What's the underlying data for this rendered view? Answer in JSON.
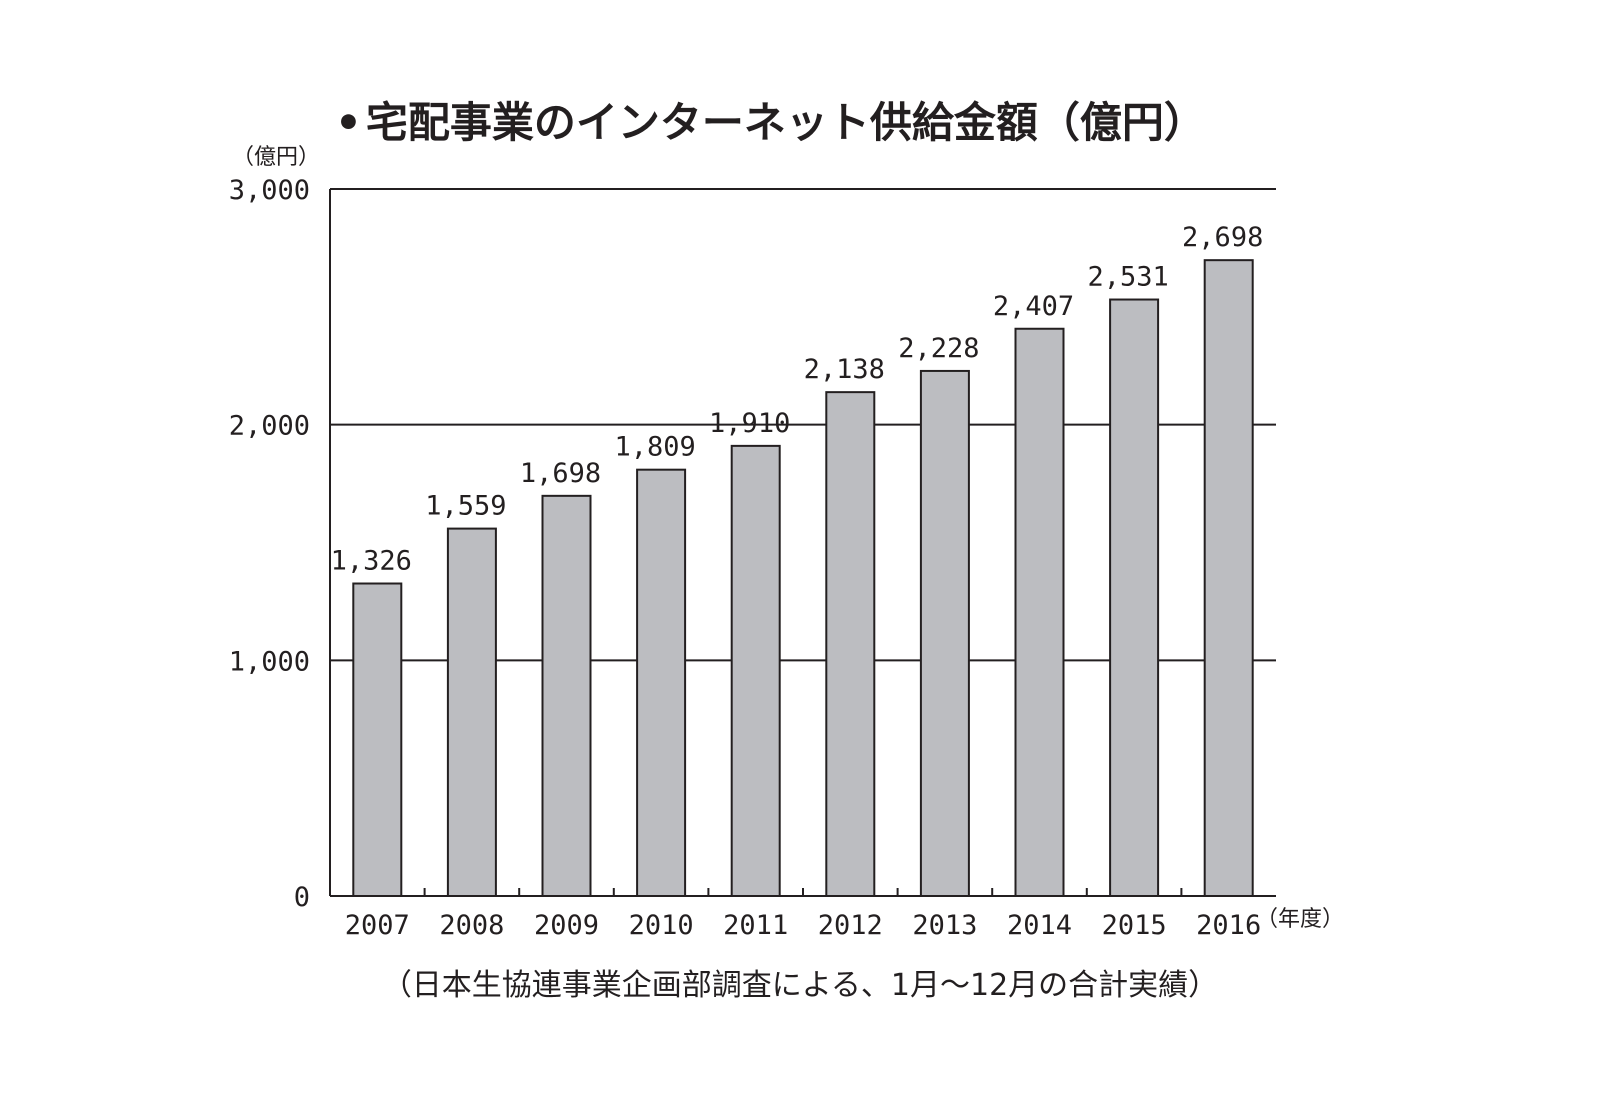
{
  "chart_data": {
    "type": "bar",
    "title": "宅配事業のインターネット供給金額（億円）",
    "title_bullet": "•",
    "ylabel": "（億円）",
    "xlabel": "（年度）",
    "ylim": [
      0,
      3000
    ],
    "yticks": [
      0,
      1000,
      2000,
      3000
    ],
    "ytick_labels": [
      "0",
      "1,000",
      "2,000",
      "3,000"
    ],
    "grid": true,
    "categories": [
      "2007",
      "2008",
      "2009",
      "2010",
      "2011",
      "2012",
      "2013",
      "2014",
      "2015",
      "2016"
    ],
    "values": [
      1326,
      1559,
      1698,
      1809,
      1910,
      2138,
      2228,
      2407,
      2531,
      2698
    ],
    "value_labels": [
      "1,326",
      "1,559",
      "1,698",
      "1,809",
      "1,910",
      "2,138",
      "2,228",
      "2,407",
      "2,531",
      "2,698"
    ],
    "source_note": "（日本生協連事業企画部調査による、1月〜12月の合計実績）",
    "colors": {
      "bar_fill": "#bcbdc1",
      "stroke": "#231f20",
      "background": "#ffffff"
    }
  }
}
